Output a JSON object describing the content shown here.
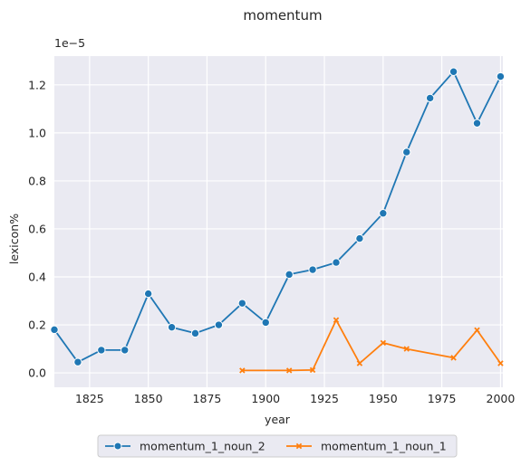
{
  "chart_data": {
    "type": "line",
    "title": "momentum",
    "xlabel": "year",
    "ylabel": "lexicon%",
    "y_offset_label": "1e−5",
    "xlim": [
      1810,
      2001
    ],
    "ylim": [
      -0.06,
      1.32
    ],
    "x_ticks": [
      1825,
      1850,
      1875,
      1900,
      1925,
      1950,
      1975,
      2000
    ],
    "y_ticks": [
      0.0,
      0.2,
      0.4,
      0.6,
      0.8,
      1.0,
      1.2
    ],
    "y_tick_labels": [
      "0.0",
      "0.2",
      "0.4",
      "0.6",
      "0.8",
      "1.0",
      "1.2"
    ],
    "grid": true,
    "legend_position": "bottom-center",
    "background_color": "#eaeaf2",
    "series": [
      {
        "name": "momentum_1_noun_2",
        "color": "#1f77b4",
        "marker": "circle",
        "x": [
          1810,
          1820,
          1830,
          1840,
          1850,
          1860,
          1870,
          1880,
          1890,
          1900,
          1910,
          1920,
          1930,
          1940,
          1950,
          1960,
          1970,
          1980,
          1990,
          2000
        ],
        "y": [
          0.18,
          0.045,
          0.095,
          0.095,
          0.33,
          0.19,
          0.165,
          0.2,
          0.29,
          0.21,
          0.41,
          0.43,
          0.46,
          0.56,
          0.665,
          0.92,
          1.145,
          1.255,
          1.04,
          1.235
        ]
      },
      {
        "name": "momentum_1_noun_1",
        "color": "#ff7f0e",
        "marker": "x",
        "x": [
          1890,
          1910,
          1920,
          1930,
          1940,
          1950,
          1960,
          1980,
          1990,
          2000
        ],
        "y": [
          0.01,
          0.01,
          0.012,
          0.22,
          0.04,
          0.125,
          0.1,
          0.063,
          0.178,
          0.04
        ]
      }
    ]
  }
}
